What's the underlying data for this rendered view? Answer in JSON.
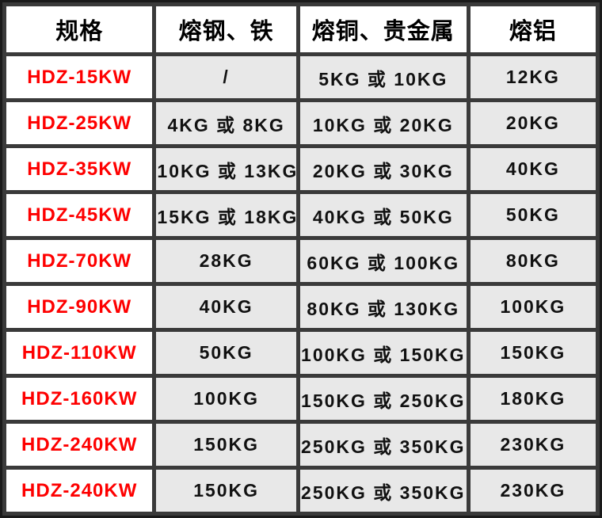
{
  "table": {
    "headers": [
      "规格",
      "熔钢、铁",
      "熔铜、贵金属",
      "熔铝"
    ],
    "rows": [
      {
        "spec": "HDZ-15KW",
        "steel_iron": "/",
        "copper_precious": "5KG 或 10KG",
        "aluminum": "12KG"
      },
      {
        "spec": "HDZ-25KW",
        "steel_iron": "4KG 或 8KG",
        "copper_precious": "10KG 或 20KG",
        "aluminum": "20KG"
      },
      {
        "spec": "HDZ-35KW",
        "steel_iron": "10KG 或 13KG",
        "copper_precious": "20KG 或 30KG",
        "aluminum": "40KG"
      },
      {
        "spec": "HDZ-45KW",
        "steel_iron": "15KG 或 18KG",
        "copper_precious": "40KG 或 50KG",
        "aluminum": "50KG"
      },
      {
        "spec": "HDZ-70KW",
        "steel_iron": "28KG",
        "copper_precious": "60KG 或 100KG",
        "aluminum": "80KG"
      },
      {
        "spec": "HDZ-90KW",
        "steel_iron": "40KG",
        "copper_precious": "80KG 或 130KG",
        "aluminum": "100KG"
      },
      {
        "spec": "HDZ-110KW",
        "steel_iron": "50KG",
        "copper_precious": "100KG 或 150KG",
        "aluminum": "150KG"
      },
      {
        "spec": "HDZ-160KW",
        "steel_iron": "100KG",
        "copper_precious": "150KG 或 250KG",
        "aluminum": "180KG"
      },
      {
        "spec": "HDZ-240KW",
        "steel_iron": "150KG",
        "copper_precious": "250KG 或 350KG",
        "aluminum": "230KG"
      },
      {
        "spec": "HDZ-240KW",
        "steel_iron": "150KG",
        "copper_precious": "250KG 或 350KG",
        "aluminum": "230KG"
      }
    ]
  },
  "colors": {
    "spec_text": "#fe0000",
    "header_bg": "#ffffff",
    "value_cell_bg": "#e8e8e8",
    "grid": "#3a3a3a",
    "frame": "#1a1a1a"
  }
}
